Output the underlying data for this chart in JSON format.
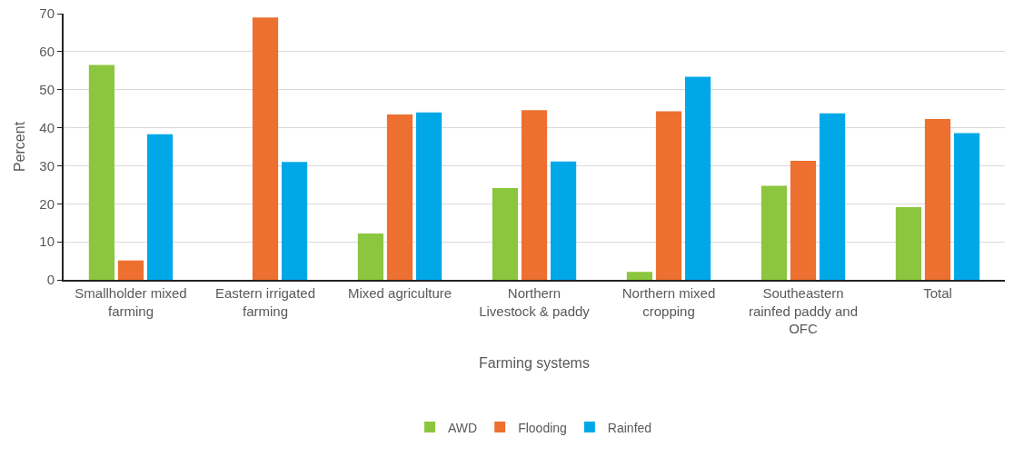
{
  "chart_data": {
    "type": "bar",
    "xlabel": "Farming systems",
    "ylabel": "Percent",
    "categories": [
      "Smallholder mixed farming",
      "Eastern irrigated farming",
      "Mixed agriculture",
      "Northern Livestock & paddy",
      "Northern mixed cropping",
      "Southeastern rainfed paddy and OFC",
      "Total"
    ],
    "series": [
      {
        "name": "AWD",
        "color": "#8cc63f",
        "values": [
          56.5,
          0,
          12.2,
          24.1,
          2.1,
          24.7,
          19.1
        ]
      },
      {
        "name": "Flooding",
        "color": "#ed7030",
        "values": [
          5.1,
          69,
          43.5,
          44.6,
          44.3,
          31.3,
          42.3
        ]
      },
      {
        "name": "Rainfed",
        "color": "#00a8e8",
        "values": [
          38.3,
          31,
          44,
          31.1,
          53.4,
          43.8,
          38.6
        ]
      }
    ],
    "ylim": [
      0,
      70
    ],
    "yticks": [
      0,
      10,
      20,
      30,
      40,
      50,
      60,
      70
    ],
    "grid": "y",
    "legend": "bottom"
  }
}
